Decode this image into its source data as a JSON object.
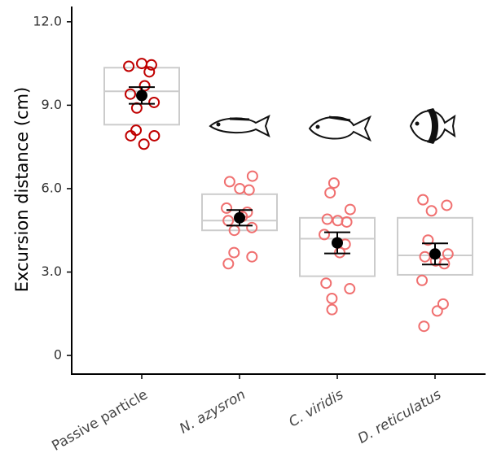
{
  "chart_data": {
    "type": "box",
    "y_label": "Excursion distance (cm)",
    "categories": [
      "Passive particle",
      "N. azysron",
      "C. viridis",
      "D. reticulatus"
    ],
    "italic_categories": [
      false,
      true,
      true,
      true
    ],
    "ylim": [
      -0.67,
      12.55
    ],
    "yticks": [
      {
        "value": 12,
        "label": "12.0"
      },
      {
        "value": 9,
        "label": "9.0"
      },
      {
        "value": 6,
        "label": "6.0"
      },
      {
        "value": 3,
        "label": "3.0"
      },
      0
    ],
    "box_color": "#cccccc",
    "mean_color": "#000000",
    "boxes": [
      {
        "q1": 8.3,
        "median": 9.5,
        "q3": 10.35,
        "mean": 9.35,
        "error": 0.3,
        "color": "#c00000",
        "points": [
          10.5,
          10.45,
          10.4,
          10.2,
          9.7,
          9.4,
          9.1,
          8.9,
          8.1,
          7.9,
          7.9,
          7.6
        ]
      },
      {
        "q1": 4.5,
        "median": 4.85,
        "q3": 5.8,
        "mean": 4.95,
        "error": 0.28,
        "color": "#f07070",
        "points": [
          6.45,
          6.25,
          6.0,
          5.95,
          5.3,
          5.15,
          5.0,
          4.85,
          4.6,
          4.5,
          3.7,
          3.55,
          3.3
        ]
      },
      {
        "q1": 2.85,
        "median": 4.2,
        "q3": 4.95,
        "mean": 4.05,
        "error": 0.38,
        "color": "#f07070",
        "points": [
          6.2,
          5.85,
          5.25,
          4.9,
          4.85,
          4.8,
          4.35,
          4.0,
          3.7,
          2.6,
          2.4,
          2.05,
          1.65
        ]
      },
      {
        "q1": 2.9,
        "median": 3.6,
        "q3": 4.95,
        "mean": 3.65,
        "error": 0.38,
        "color": "#f07070",
        "points": [
          5.6,
          5.4,
          5.2,
          4.15,
          3.65,
          3.55,
          3.4,
          3.3,
          2.7,
          1.85,
          1.6,
          1.05
        ]
      }
    ]
  }
}
